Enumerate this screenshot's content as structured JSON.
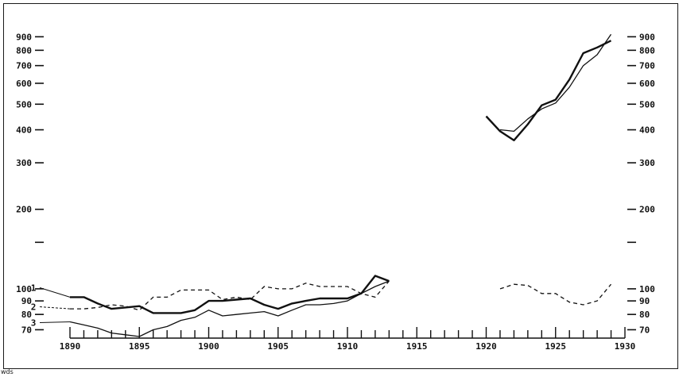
{
  "chart_data": {
    "type": "line",
    "y_scale": "log",
    "grid": false,
    "xlim": [
      1890,
      1930
    ],
    "ylim": [
      60,
      1000
    ],
    "x_ticks": [
      1890,
      1895,
      1900,
      1905,
      1910,
      1915,
      1920,
      1925,
      1930
    ],
    "x_tick_labels": [
      "1890",
      "1895",
      "1900",
      "1905",
      "1910",
      "1915",
      "1920",
      "1925",
      "1930"
    ],
    "y_ticks": [
      70,
      80,
      90,
      100,
      150,
      200,
      300,
      400,
      500,
      600,
      700,
      800,
      900
    ],
    "y_tick_labels": [
      "70",
      "80",
      "90",
      "100",
      "",
      "200",
      "300",
      "400",
      "500",
      "600",
      "700",
      "800",
      "900"
    ],
    "series": [
      {
        "name": "1",
        "style": "thick",
        "segments": [
          [
            [
              1890,
              93
            ],
            [
              1891,
              93
            ],
            [
              1892,
              88
            ],
            [
              1893,
              84
            ],
            [
              1894,
              85
            ],
            [
              1895,
              86
            ],
            [
              1896,
              81
            ],
            [
              1897,
              81
            ],
            [
              1898,
              81
            ],
            [
              1899,
              83
            ],
            [
              1900,
              90
            ],
            [
              1901,
              90
            ],
            [
              1902,
              91
            ],
            [
              1903,
              92
            ],
            [
              1904,
              87
            ],
            [
              1905,
              84
            ],
            [
              1906,
              88
            ],
            [
              1907,
              90
            ],
            [
              1908,
              92
            ],
            [
              1909,
              92
            ],
            [
              1910,
              92
            ],
            [
              1911,
              96
            ],
            [
              1912,
              112
            ],
            [
              1913,
              107
            ]
          ],
          [
            [
              1920,
              450
            ],
            [
              1921,
              395
            ],
            [
              1922,
              365
            ],
            [
              1923,
              420
            ],
            [
              1924,
              495
            ],
            [
              1925,
              520
            ],
            [
              1926,
              620
            ],
            [
              1927,
              780
            ],
            [
              1928,
              820
            ],
            [
              1929,
              870
            ]
          ]
        ]
      },
      {
        "name": "2",
        "style": "dashed",
        "segments": [
          [
            [
              1890,
              84
            ],
            [
              1891,
              84
            ],
            [
              1892,
              85
            ],
            [
              1893,
              87
            ],
            [
              1894,
              86
            ],
            [
              1895,
              83
            ],
            [
              1896,
              93
            ],
            [
              1897,
              93
            ],
            [
              1898,
              99
            ],
            [
              1899,
              99
            ],
            [
              1900,
              99
            ],
            [
              1901,
              91
            ],
            [
              1902,
              93
            ],
            [
              1903,
              91
            ],
            [
              1904,
              102
            ],
            [
              1905,
              100
            ],
            [
              1906,
              100
            ],
            [
              1907,
              105
            ],
            [
              1908,
              102
            ],
            [
              1909,
              102
            ],
            [
              1910,
              102
            ],
            [
              1911,
              96
            ],
            [
              1912,
              93
            ],
            [
              1913,
              107
            ]
          ],
          [
            [
              1921,
              100
            ],
            [
              1922,
              104
            ],
            [
              1923,
              103
            ],
            [
              1924,
              96
            ],
            [
              1925,
              96
            ],
            [
              1926,
              89
            ],
            [
              1927,
              87
            ],
            [
              1928,
              90
            ],
            [
              1929,
              104
            ]
          ]
        ]
      },
      {
        "name": "3",
        "style": "thin",
        "segments": [
          [
            [
              1890,
              75
            ],
            [
              1891,
              73
            ],
            [
              1892,
              71
            ],
            [
              1893,
              68
            ],
            [
              1894,
              67
            ],
            [
              1895,
              66
            ],
            [
              1896,
              70
            ],
            [
              1897,
              72
            ],
            [
              1898,
              76
            ],
            [
              1899,
              78
            ],
            [
              1900,
              83
            ],
            [
              1901,
              79
            ],
            [
              1902,
              80
            ],
            [
              1903,
              81
            ],
            [
              1904,
              82
            ],
            [
              1905,
              79
            ],
            [
              1906,
              83
            ],
            [
              1907,
              87
            ],
            [
              1908,
              87
            ],
            [
              1909,
              88
            ],
            [
              1910,
              90
            ],
            [
              1911,
              96
            ],
            [
              1912,
              102
            ],
            [
              1913,
              107
            ]
          ],
          [
            [
              1921,
              400
            ],
            [
              1922,
              395
            ],
            [
              1923,
              440
            ],
            [
              1924,
              480
            ],
            [
              1925,
              505
            ],
            [
              1926,
              580
            ],
            [
              1927,
              700
            ],
            [
              1928,
              770
            ],
            [
              1929,
              920
            ]
          ]
        ]
      }
    ],
    "series_labels": [
      "1",
      "2",
      "3"
    ],
    "annotation": "wds"
  }
}
